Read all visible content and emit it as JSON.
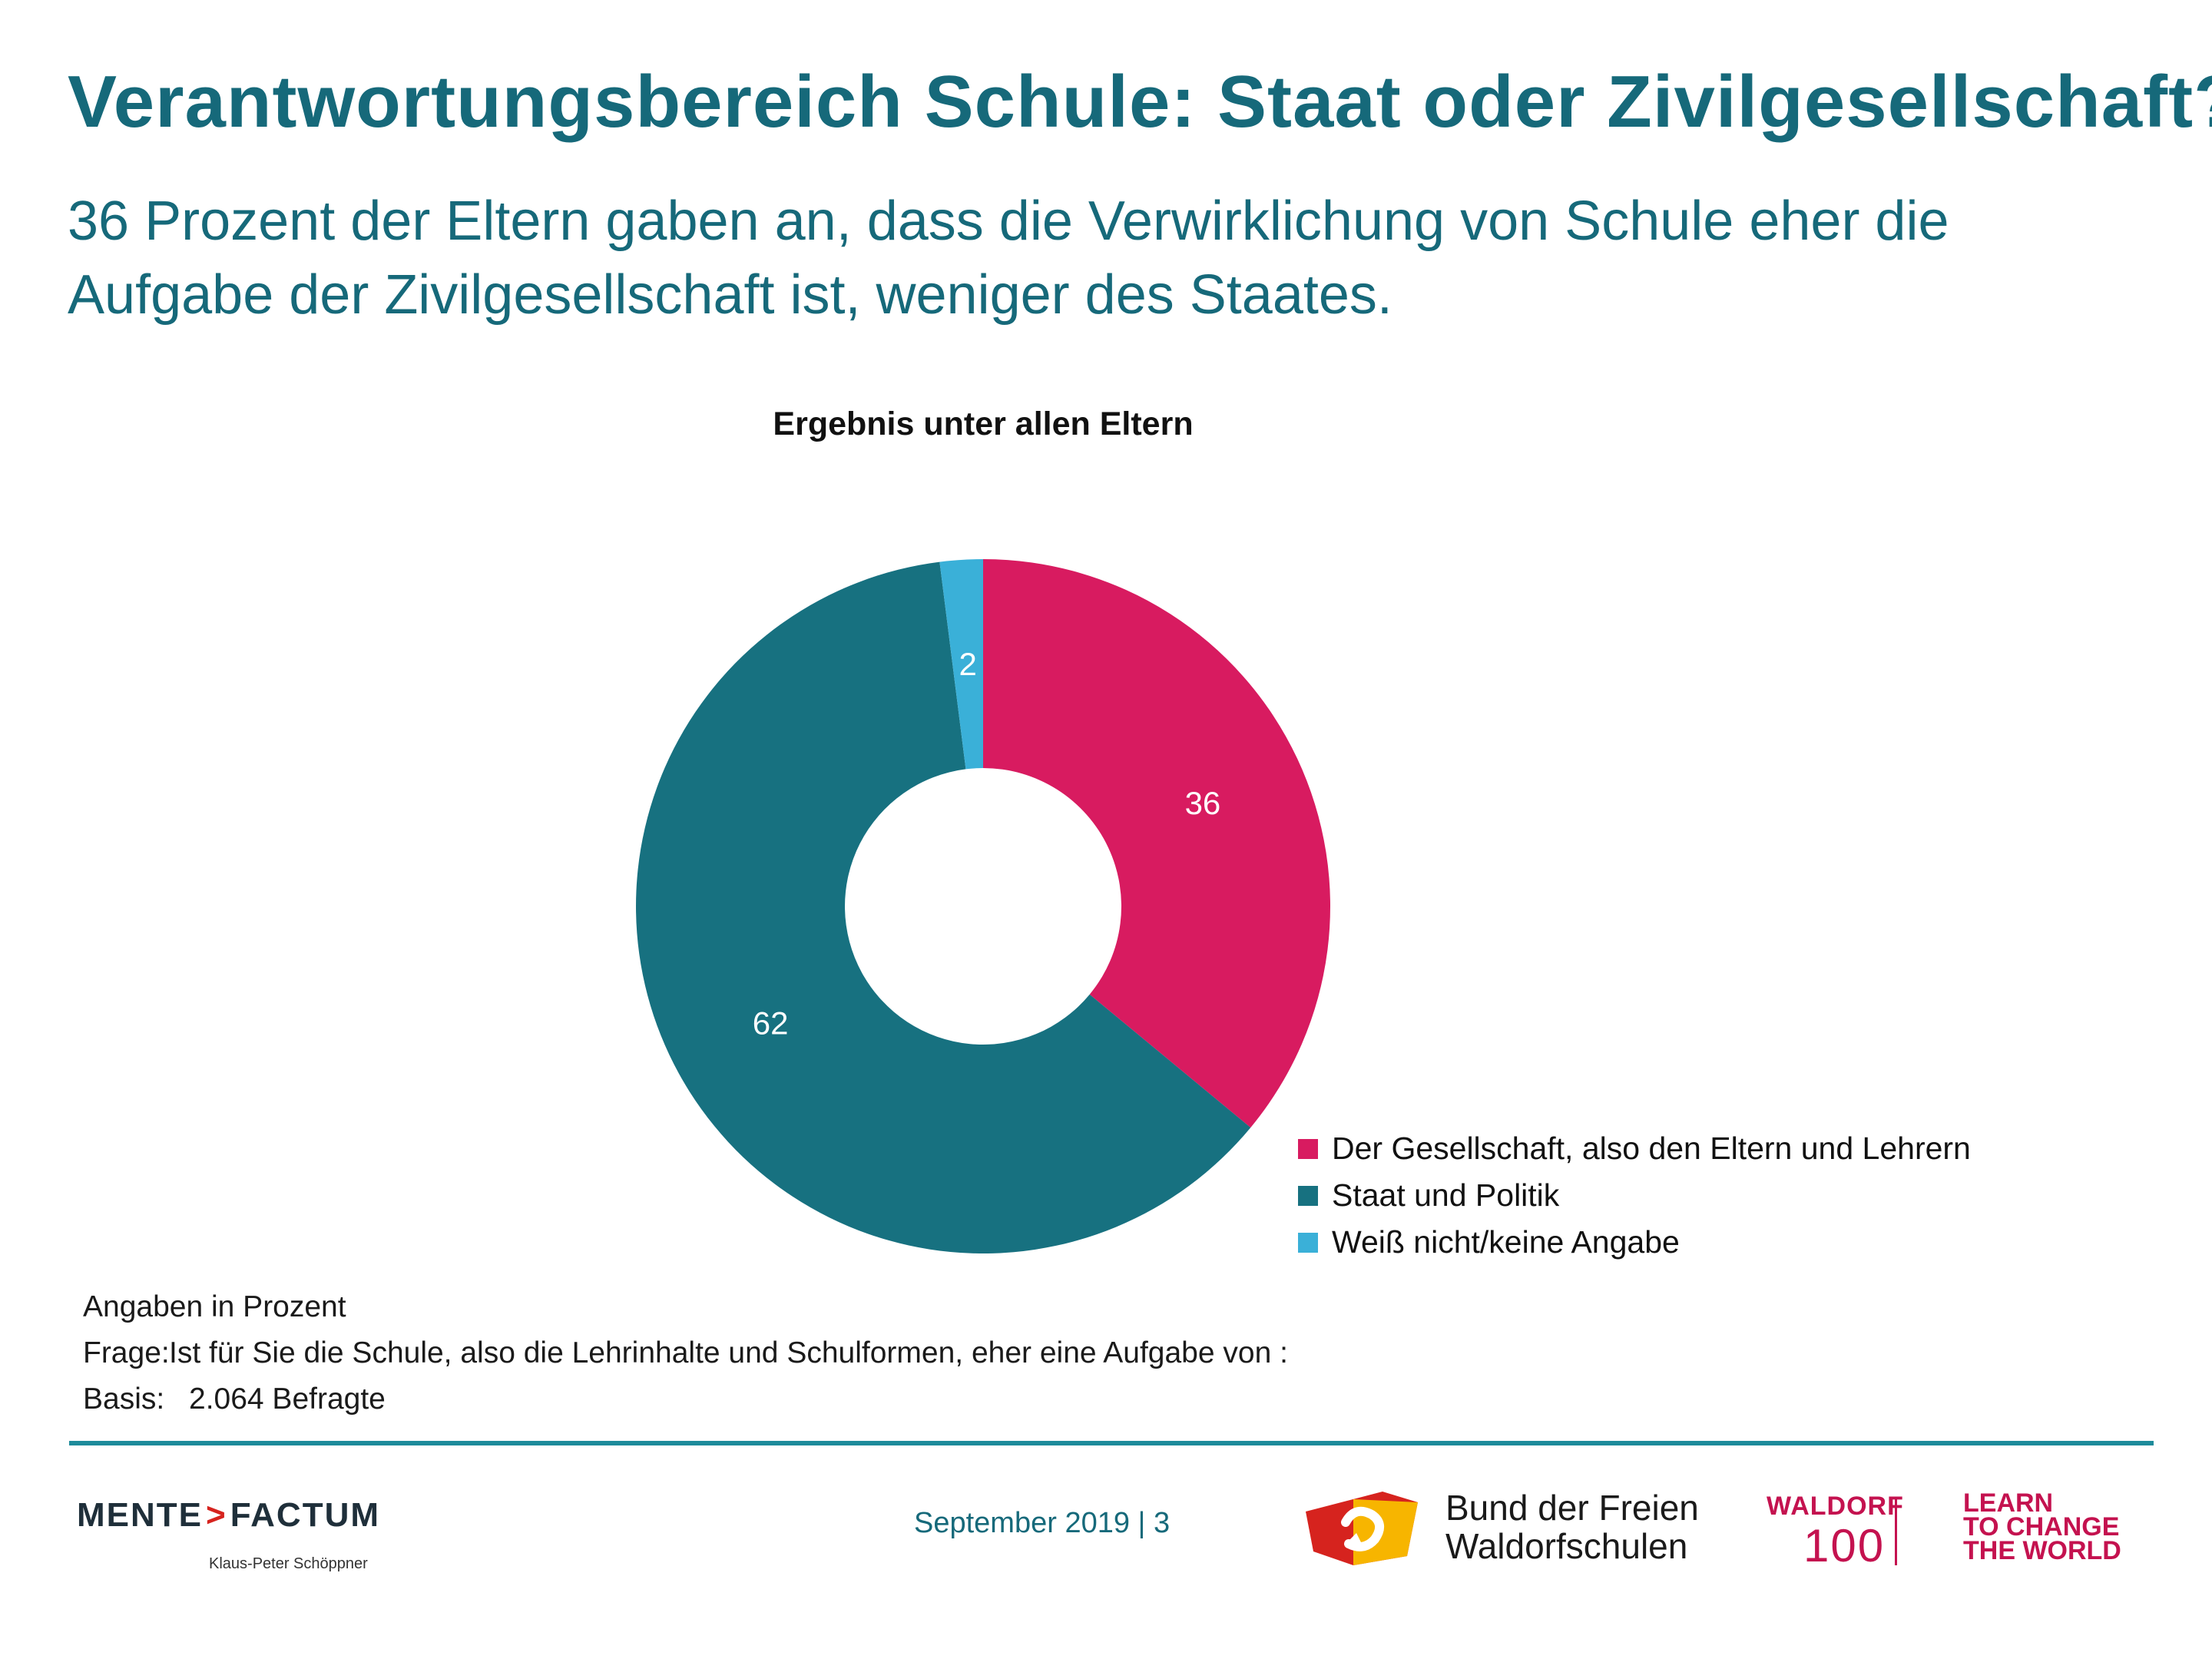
{
  "header": {
    "title": "Verantwortungsbereich Schule: Staat oder Zivilgesellschaft?",
    "subtitle_line1": "36 Prozent der Eltern gaben an, dass die Verwirklichung von Schule eher die",
    "subtitle_line2": "Aufgabe der Zivilgesellschaft ist, weniger des Staates."
  },
  "chart_data": {
    "type": "pie",
    "variant": "donut",
    "title": "Ergebnis unter allen Eltern",
    "categories": [
      "Der Gesellschaft, also den Eltern und Lehrern",
      "Staat und Politik",
      "Weiß nicht/keine Angabe"
    ],
    "values": [
      36,
      62,
      2
    ],
    "labels": [
      "36",
      "62",
      "2"
    ],
    "colors": [
      "#d81b60",
      "#177180",
      "#3ab0d8"
    ],
    "label_color": "#ffffff",
    "legend_position": "bottom-right"
  },
  "notes": {
    "unit": "Angaben in Prozent",
    "question_label": "Frage:",
    "question": "Ist für Sie die Schule, also die Lehrinhalte und Schulformen, eher eine Aufgabe von :",
    "basis_label": "Basis:",
    "basis": "2.064 Befragte"
  },
  "footer": {
    "logo_left": "MENTE",
    "logo_arrow": ">",
    "logo_right": "FACTUM",
    "logo_sub": "Klaus-Peter Schöppner",
    "date_page": "September 2019 | 3",
    "bdfw_line1": "Bund der Freien",
    "bdfw_line2": "Waldorfschulen",
    "waldorf_word": "WALDORF",
    "waldorf_number": "100",
    "slogan_line1": "LEARN",
    "slogan_line2": "TO CHANGE",
    "slogan_line3": "THE WORLD",
    "colors": {
      "accent": "#16697a",
      "rule": "#1e8b9b",
      "waldorf": "#c4124f",
      "mf_arrow": "#d6231e"
    }
  }
}
